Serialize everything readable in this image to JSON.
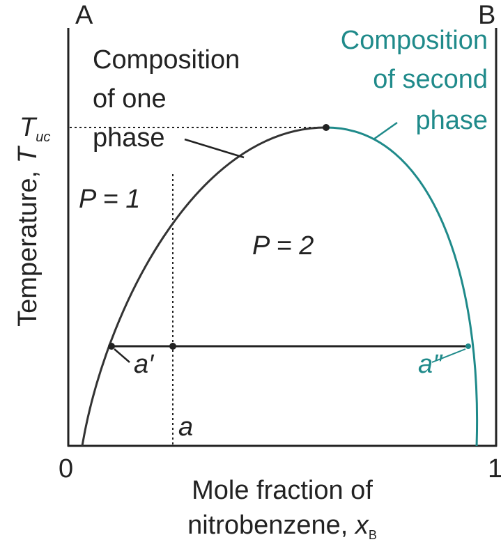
{
  "corner_left": "A",
  "corner_right": "B",
  "one_phase": [
    "Composition",
    "of one",
    "phase"
  ],
  "second_phase": [
    "Composition",
    "of second",
    "phase"
  ],
  "t_symbol": "T",
  "t_subscript": "uc",
  "p1": "P = 1",
  "p2": "P = 2",
  "a_prime": "a′",
  "a_double_prime": "a″",
  "a": "a",
  "x_start": "0",
  "x_end": "1",
  "x_axis": {
    "line1": "Mole fraction of",
    "line2": "nitrobenzene, ",
    "symbol": "x",
    "subscript": "B"
  },
  "y_axis": {
    "text": "Temperature, ",
    "symbol": "T"
  }
}
